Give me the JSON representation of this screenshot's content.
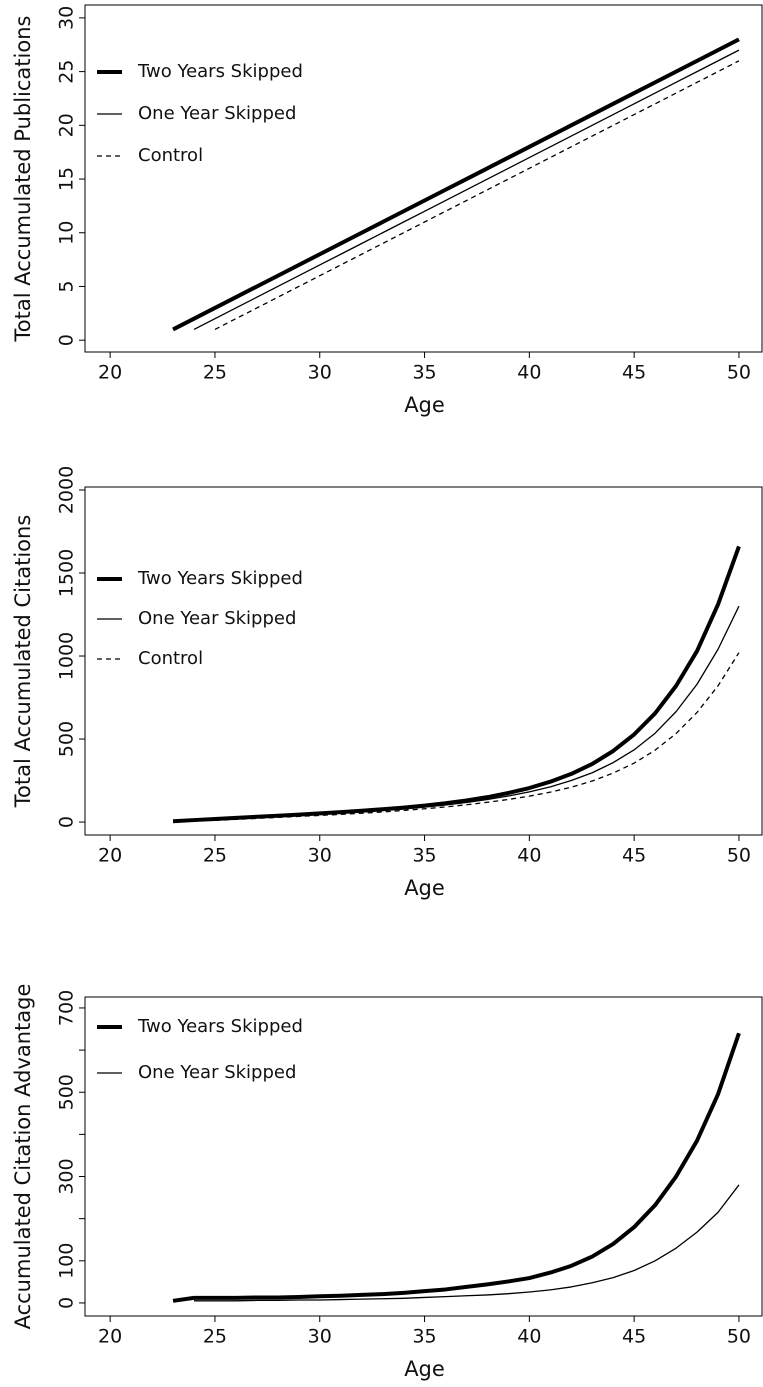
{
  "chart_data": [
    {
      "type": "line",
      "xlabel": "Age",
      "ylabel": "Total Accumulated Publications",
      "xlim": [
        18.8,
        51.1
      ],
      "xticks": [
        20,
        25,
        30,
        35,
        40,
        45,
        50
      ],
      "ylim": [
        -1.1,
        31.2
      ],
      "yticks": [
        0,
        5,
        10,
        15,
        20,
        25,
        30
      ],
      "x": [
        23,
        24,
        25,
        26,
        27,
        28,
        29,
        30,
        31,
        32,
        33,
        34,
        35,
        36,
        37,
        38,
        39,
        40,
        41,
        42,
        43,
        44,
        45,
        46,
        47,
        48,
        49,
        50
      ],
      "series": [
        {
          "name": "Two Years Skipped",
          "color": "#000000",
          "values": [
            1,
            2,
            3,
            4,
            5,
            6,
            7,
            8,
            9,
            10,
            11,
            12,
            13,
            14,
            15,
            16,
            17,
            18,
            19,
            20,
            21,
            22,
            23,
            24,
            25,
            26,
            27,
            28
          ]
        },
        {
          "name": "One Year Skipped",
          "color": "#000000",
          "values": [
            null,
            1,
            2,
            3,
            4,
            5,
            6,
            7,
            8,
            9,
            10,
            11,
            12,
            13,
            14,
            15,
            16,
            17,
            18,
            19,
            20,
            21,
            22,
            23,
            24,
            25,
            26,
            27
          ]
        },
        {
          "name": "Control",
          "color": "#000000",
          "dashed": true,
          "values": [
            null,
            null,
            1,
            2,
            3,
            4,
            5,
            6,
            7,
            8,
            9,
            10,
            11,
            12,
            13,
            14,
            15,
            16,
            17,
            18,
            19,
            20,
            21,
            22,
            23,
            24,
            25,
            26
          ]
        }
      ]
    },
    {
      "type": "line",
      "xlabel": "Age",
      "ylabel": "Total Accumulated Citations",
      "xlim": [
        18.8,
        51.1
      ],
      "xticks": [
        20,
        25,
        30,
        35,
        40,
        45,
        50
      ],
      "ylim": [
        -78,
        2018
      ],
      "yticks": [
        0,
        500,
        1000,
        1500,
        2000
      ],
      "x": [
        23,
        24,
        25,
        26,
        27,
        28,
        29,
        30,
        31,
        32,
        33,
        34,
        35,
        36,
        37,
        38,
        39,
        40,
        41,
        42,
        43,
        44,
        45,
        46,
        47,
        48,
        49,
        50
      ],
      "series": [
        {
          "name": "Two Years Skipped",
          "color": "#000000",
          "values": [
            5,
            12,
            18,
            25,
            32,
            38,
            45,
            52,
            60,
            68,
            77,
            87,
            99,
            113,
            130,
            150,
            175,
            205,
            243,
            290,
            350,
            428,
            528,
            655,
            820,
            1030,
            1310,
            1660
          ]
        },
        {
          "name": "One Year Skipped",
          "color": "#000000",
          "values": [
            null,
            10,
            16,
            22,
            28,
            34,
            40,
            46,
            53,
            61,
            70,
            79,
            90,
            103,
            118,
            136,
            157,
            182,
            212,
            250,
            297,
            358,
            435,
            535,
            665,
            830,
            1040,
            1300
          ]
        },
        {
          "name": "Control",
          "color": "#000000",
          "dashed": true,
          "values": [
            null,
            null,
            10,
            16,
            22,
            28,
            34,
            40,
            46,
            53,
            61,
            70,
            80,
            91,
            104,
            119,
            136,
            156,
            180,
            210,
            247,
            295,
            355,
            433,
            533,
            660,
            820,
            1020
          ]
        }
      ]
    },
    {
      "type": "line",
      "xlabel": "Age",
      "ylabel": "Accumulated Citation Advantage",
      "xlim": [
        18.8,
        51.1
      ],
      "xticks": [
        20,
        25,
        30,
        35,
        40,
        45,
        50
      ],
      "ylim": [
        -31,
        726
      ],
      "yticks": [
        0,
        100,
        300,
        500,
        700
      ],
      "yminorticks": [
        200,
        400,
        600
      ],
      "x": [
        23,
        24,
        25,
        26,
        27,
        28,
        29,
        30,
        31,
        32,
        33,
        34,
        35,
        36,
        37,
        38,
        39,
        40,
        41,
        42,
        43,
        44,
        45,
        46,
        47,
        48,
        49,
        50
      ],
      "series": [
        {
          "name": "Two Years Skipped",
          "color": "#000000",
          "values": [
            5,
            12,
            12,
            12,
            13,
            13,
            14,
            16,
            17,
            19,
            21,
            24,
            28,
            32,
            38,
            44,
            51,
            59,
            72,
            88,
            110,
            140,
            180,
            232,
            300,
            385,
            495,
            640
          ]
        },
        {
          "name": "One Year Skipped",
          "color": "#000000",
          "values": [
            null,
            5,
            5,
            5,
            6,
            6,
            7,
            7,
            8,
            9,
            10,
            11,
            13,
            15,
            17,
            19,
            22,
            26,
            31,
            38,
            48,
            60,
            77,
            100,
            130,
            168,
            215,
            280
          ]
        }
      ]
    }
  ]
}
